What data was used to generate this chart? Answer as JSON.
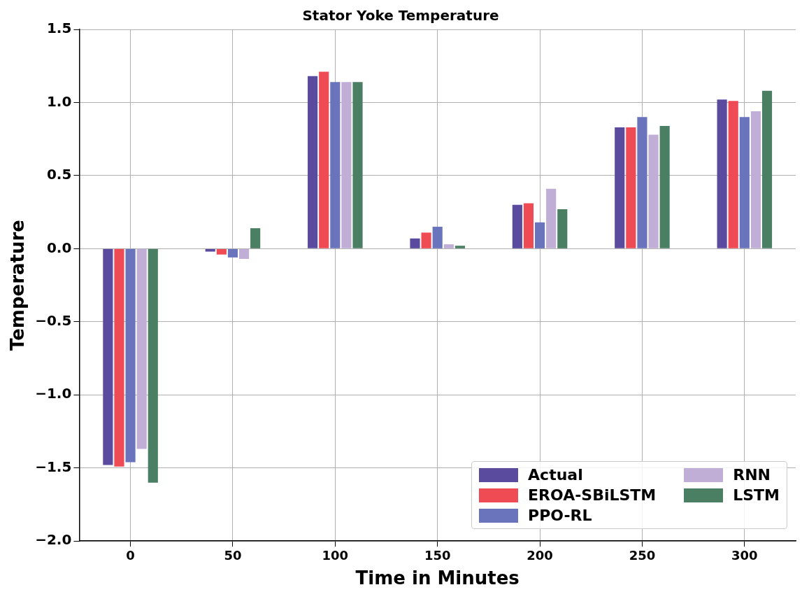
{
  "chart_data": {
    "type": "bar",
    "title": "Stator Yoke Temperature",
    "xlabel": "Time in Minutes",
    "ylabel": "Temperature",
    "categories": [
      "0",
      "50",
      "100",
      "150",
      "200",
      "250",
      "300"
    ],
    "series": [
      {
        "name": "Actual",
        "color": "#5b4b9e",
        "values": [
          -1.48,
          -0.02,
          1.18,
          0.07,
          0.3,
          0.83,
          1.02
        ]
      },
      {
        "name": "EROA-SBiLSTM",
        "color": "#ef4b55",
        "values": [
          -1.49,
          -0.04,
          1.21,
          0.11,
          0.31,
          0.83,
          1.01
        ]
      },
      {
        "name": "PPO-RL",
        "color": "#6a74bd",
        "values": [
          -1.46,
          -0.06,
          1.14,
          0.15,
          0.18,
          0.9,
          0.9
        ]
      },
      {
        "name": "RNN",
        "color": "#c0aed6",
        "values": [
          -1.37,
          -0.07,
          1.14,
          0.03,
          0.41,
          0.78,
          0.94
        ]
      },
      {
        "name": "LSTM",
        "color": "#4a7f64",
        "values": [
          -1.6,
          0.14,
          1.14,
          0.02,
          0.27,
          0.84,
          1.08
        ]
      }
    ],
    "ylim": [
      -2.0,
      1.5
    ],
    "yticks": [
      {
        "value": -2,
        "label": "−2.0"
      },
      {
        "value": -1.5,
        "label": "−1.5"
      },
      {
        "value": -1,
        "label": "−1.0"
      },
      {
        "value": -0.5,
        "label": "−0.5"
      },
      {
        "value": 0,
        "label": "0.0"
      },
      {
        "value": 0.5,
        "label": "0.5"
      },
      {
        "value": 1,
        "label": "1.0"
      },
      {
        "value": 1.5,
        "label": "1.5"
      }
    ],
    "grid": true,
    "legend": "bottom right"
  }
}
